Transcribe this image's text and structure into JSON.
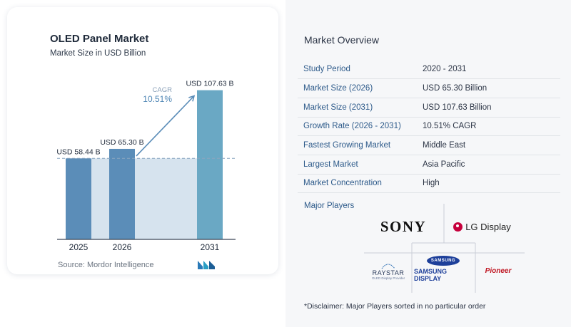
{
  "chart_data": {
    "type": "bar",
    "title": "OLED Panel Market",
    "subtitle": "Market Size in USD Billion",
    "categories": [
      "2025",
      "2026",
      "2031"
    ],
    "values": [
      58.44,
      65.3,
      107.63
    ],
    "data_labels": [
      "USD 58.44 B",
      "USD 65.30 B",
      "USD 107.63 B"
    ],
    "ylim": [
      0,
      110
    ],
    "grid": false,
    "cagr_label": "CAGR",
    "cagr_value": "10.51%",
    "colors": {
      "bar": "#5b8db8",
      "bar_last": "#6aa8c4",
      "band": "#d6e3ee",
      "arrow": "#5b8db8",
      "axis": "#3b4556"
    }
  },
  "source": "Source: Mordor Intelligence",
  "overview": {
    "title": "Market Overview",
    "rows": [
      {
        "key": "Study Period",
        "value": "2020 - 2031"
      },
      {
        "key": "Market Size (2026)",
        "value": "USD 65.30 Billion"
      },
      {
        "key": "Market Size (2031)",
        "value": "USD 107.63 Billion"
      },
      {
        "key": "Growth Rate (2026 - 2031)",
        "value": "10.51% CAGR"
      },
      {
        "key": "Fastest Growing Market",
        "value": "Middle East"
      },
      {
        "key": "Largest Market",
        "value": "Asia Pacific"
      },
      {
        "key": "Market Concentration",
        "value": "High"
      }
    ]
  },
  "major_players": {
    "label": "Major Players",
    "logos": {
      "sony": "SONY",
      "lg": "LG Display",
      "raystar": "RAYSTAR",
      "raystar_tag": "OLED Display Provider",
      "samsung_oval": "SAMSUNG",
      "samsung": "SAMSUNG DISPLAY",
      "pioneer": "Pioneer"
    }
  },
  "disclaimer": "*Disclaimer: Major Players sorted in no particular order"
}
